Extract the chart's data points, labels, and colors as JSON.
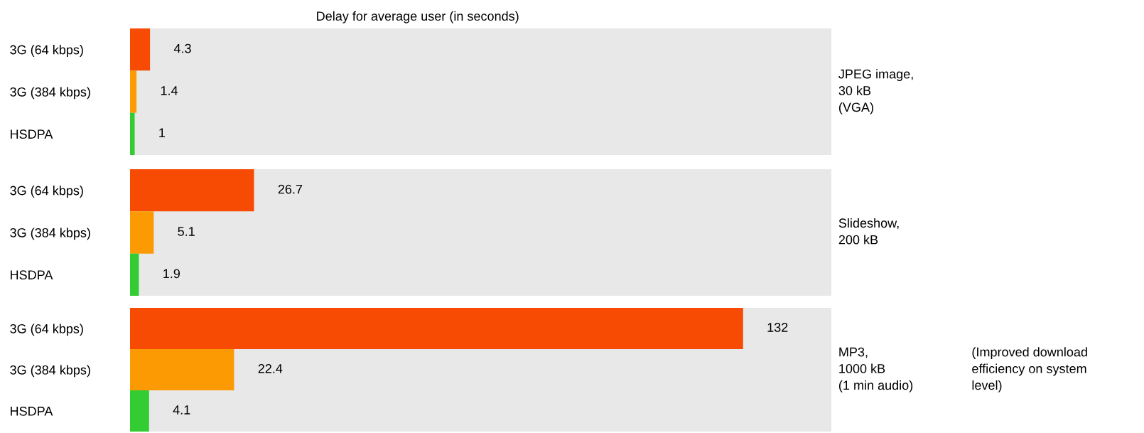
{
  "chart_data": [
    {
      "type": "bar",
      "orientation": "horizontal",
      "title": "Delay for average user (in seconds)",
      "categories": [
        "3G (64 kbps)",
        "3G (384 kbps)",
        "HSDPA"
      ],
      "values": [
        4.3,
        1.4,
        1
      ],
      "colors": [
        "#f74b04",
        "#fb9a03",
        "#33cc33"
      ],
      "data_labels": true,
      "xlim": [
        0,
        151
      ],
      "tick_labels": "y",
      "grid": false,
      "legend": false,
      "annotations": [
        "JPEG image,\n30 kB\n(VGA)"
      ]
    },
    {
      "type": "bar",
      "orientation": "horizontal",
      "categories": [
        "3G (64 kbps)",
        "3G (384 kbps)",
        "HSDPA"
      ],
      "values": [
        26.7,
        5.1,
        1.9
      ],
      "colors": [
        "#f74b04",
        "#fb9a03",
        "#33cc33"
      ],
      "data_labels": true,
      "xlim": [
        0,
        151
      ],
      "tick_labels": "y",
      "grid": false,
      "legend": false,
      "annotations": [
        "Slideshow,\n200 kB"
      ]
    },
    {
      "type": "bar",
      "orientation": "horizontal",
      "categories": [
        "3G (64 kbps)",
        "3G (384 kbps)",
        "HSDPA"
      ],
      "values": [
        132,
        22.4,
        4.1
      ],
      "colors": [
        "#f74b04",
        "#fb9a03",
        "#33cc33"
      ],
      "data_labels": true,
      "xlim": [
        0,
        151
      ],
      "tick_labels": "y",
      "grid": false,
      "legend": false,
      "annotations": [
        "MP3,\n1000 kB\n(1 min audio)",
        "(Improved download\nefficiency on system\nlevel)"
      ]
    }
  ]
}
